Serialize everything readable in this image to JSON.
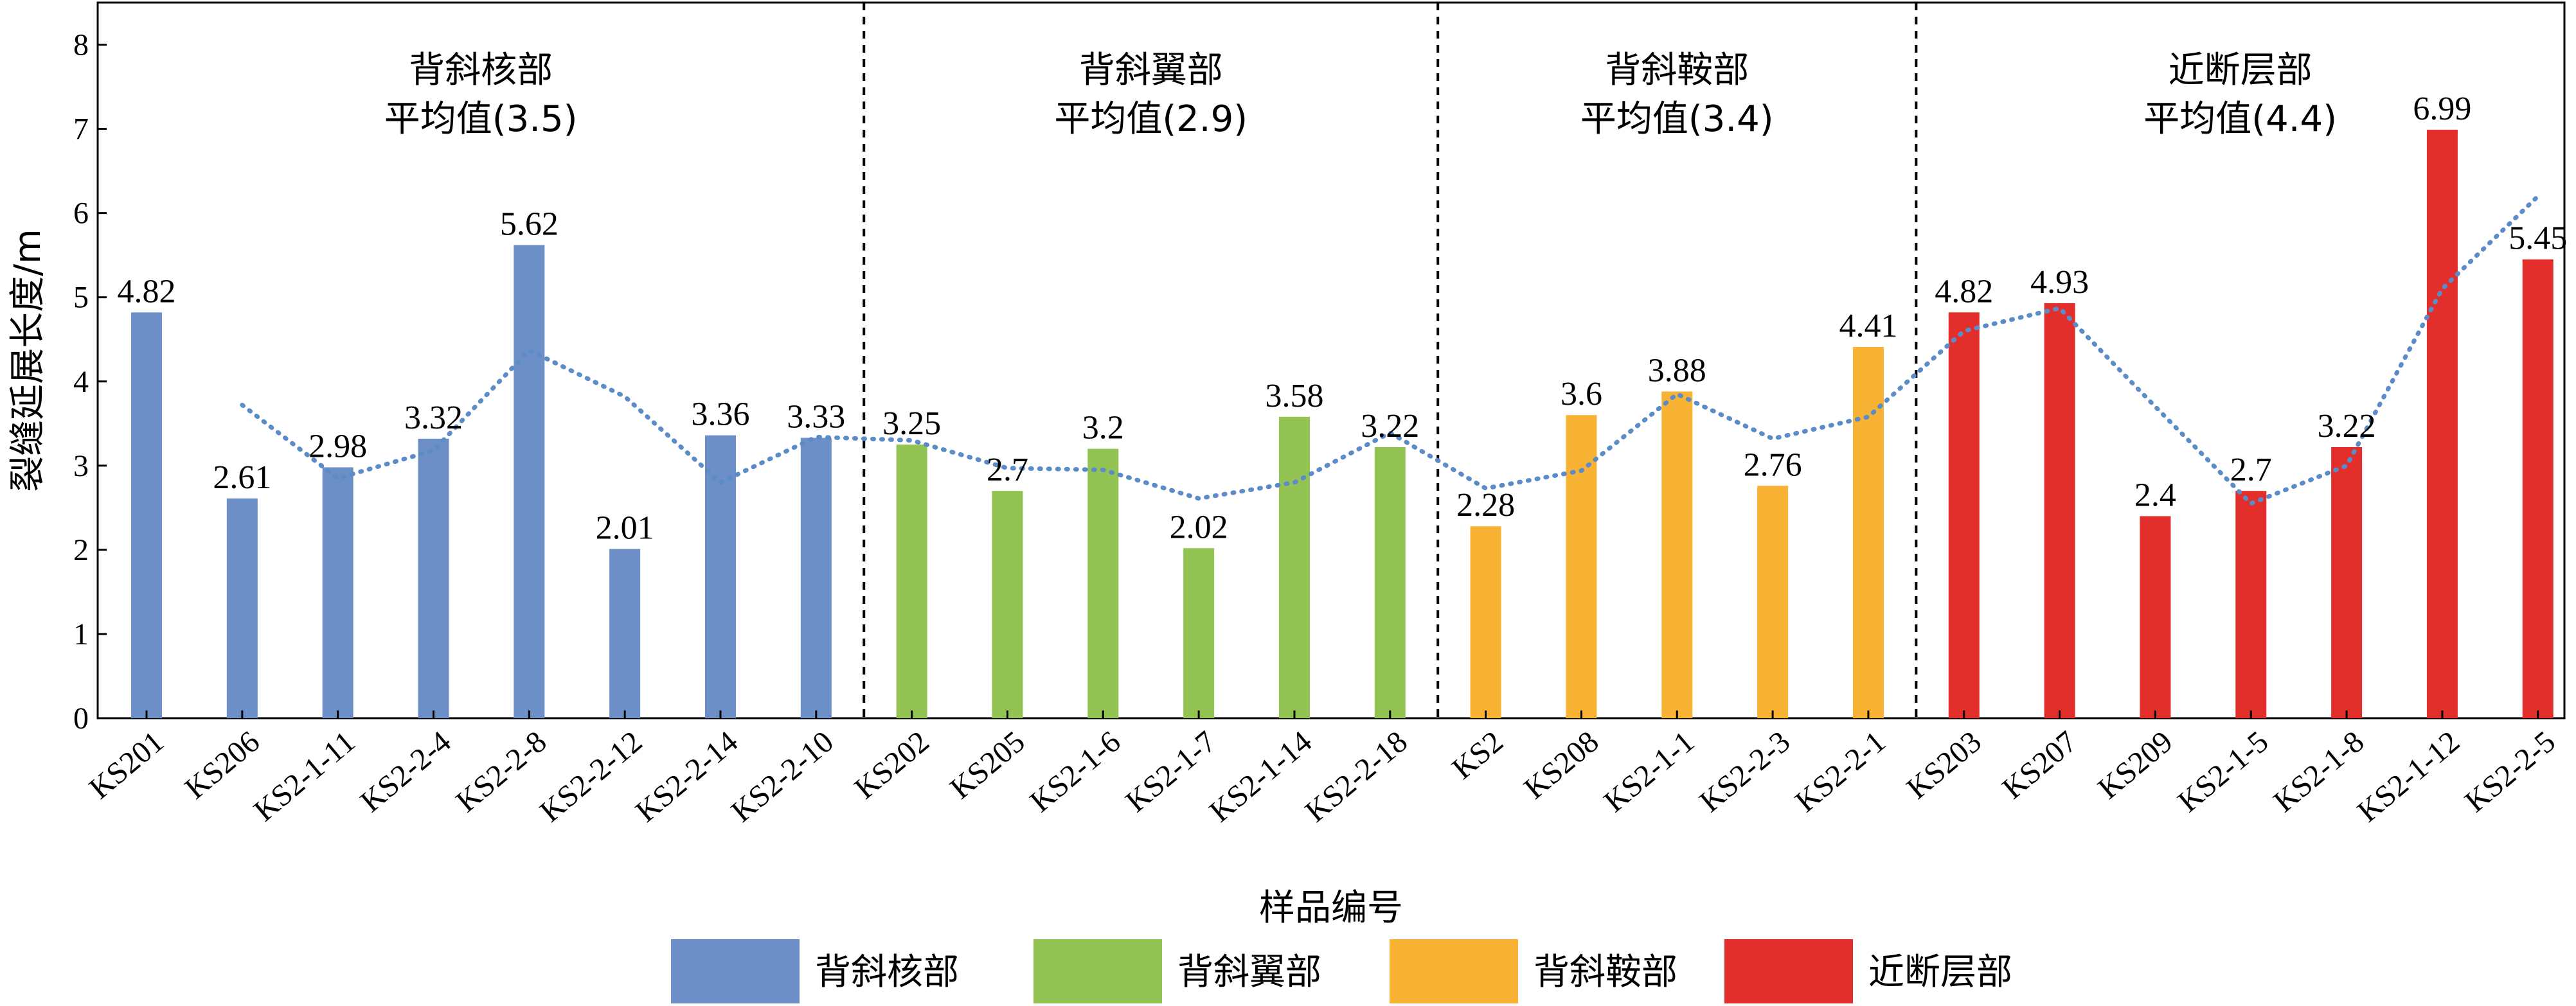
{
  "chart_data": {
    "type": "bar",
    "xlabel": "样品编号",
    "ylabel": "裂缝延展长度/m",
    "ylim": [
      0,
      8.5
    ],
    "yticks": [
      0,
      1,
      2,
      3,
      4,
      5,
      6,
      7,
      8
    ],
    "groups": [
      {
        "name": "背斜核部",
        "mean_label": "平均值(3.5)",
        "color": "#6b8fc6",
        "categories": [
          "KS201",
          "KS206",
          "KS2-1-11",
          "KS2-2-4",
          "KS2-2-8",
          "KS2-2-12",
          "KS2-2-14",
          "KS2-2-10"
        ],
        "values": [
          4.82,
          2.61,
          2.98,
          3.32,
          5.62,
          2.01,
          3.36,
          3.33
        ],
        "labels": [
          "4.82",
          "2.61",
          "2.98",
          "3.32",
          "5.62",
          "2.01",
          "3.36",
          "3.33"
        ]
      },
      {
        "name": "背斜翼部",
        "mean_label": "平均值(2.9)",
        "color": "#92c353",
        "categories": [
          "KS202",
          "KS205",
          "KS2-1-6",
          "KS2-1-7",
          "KS2-1-14",
          "KS2-2-18"
        ],
        "values": [
          3.25,
          2.7,
          3.2,
          2.02,
          3.58,
          3.22
        ],
        "labels": [
          "3.25",
          "2.7",
          "3.2",
          "2.02",
          "3.58",
          "3.22"
        ]
      },
      {
        "name": "背斜鞍部",
        "mean_label": "平均值(3.4)",
        "color": "#f8b234",
        "categories": [
          "KS2",
          "KS208",
          "KS2-1-1",
          "KS2-2-3",
          "KS2-2-1"
        ],
        "values": [
          2.28,
          3.6,
          3.88,
          2.76,
          4.41
        ],
        "labels": [
          "2.28",
          "3.6",
          "3.88",
          "2.76",
          "4.41"
        ]
      },
      {
        "name": "近断层部",
        "mean_label": "平均值(4.4)",
        "color": "#e32f2b",
        "categories": [
          "KS203",
          "KS207",
          "KS209",
          "KS2-1-5",
          "KS2-1-8",
          "KS2-1-12",
          "KS2-2-5"
        ],
        "values": [
          4.82,
          4.93,
          2.4,
          2.7,
          3.22,
          6.99,
          5.45
        ],
        "labels": [
          "4.82",
          "4.93",
          "2.4",
          "2.7",
          "3.22",
          "6.99",
          "5.45"
        ]
      }
    ],
    "trendline": {
      "style": "dotted",
      "color": "#5b8cc8",
      "values": [
        3.72,
        2.85,
        3.18,
        4.37,
        3.82,
        2.8,
        3.34,
        3.3,
        2.97,
        2.95,
        2.61,
        2.8,
        3.39,
        2.73,
        2.94,
        3.85,
        3.32,
        3.58,
        4.6,
        4.87,
        3.7,
        2.55,
        3.0,
        5.1,
        6.2
      ]
    },
    "legend": {
      "position": "bottom"
    }
  }
}
